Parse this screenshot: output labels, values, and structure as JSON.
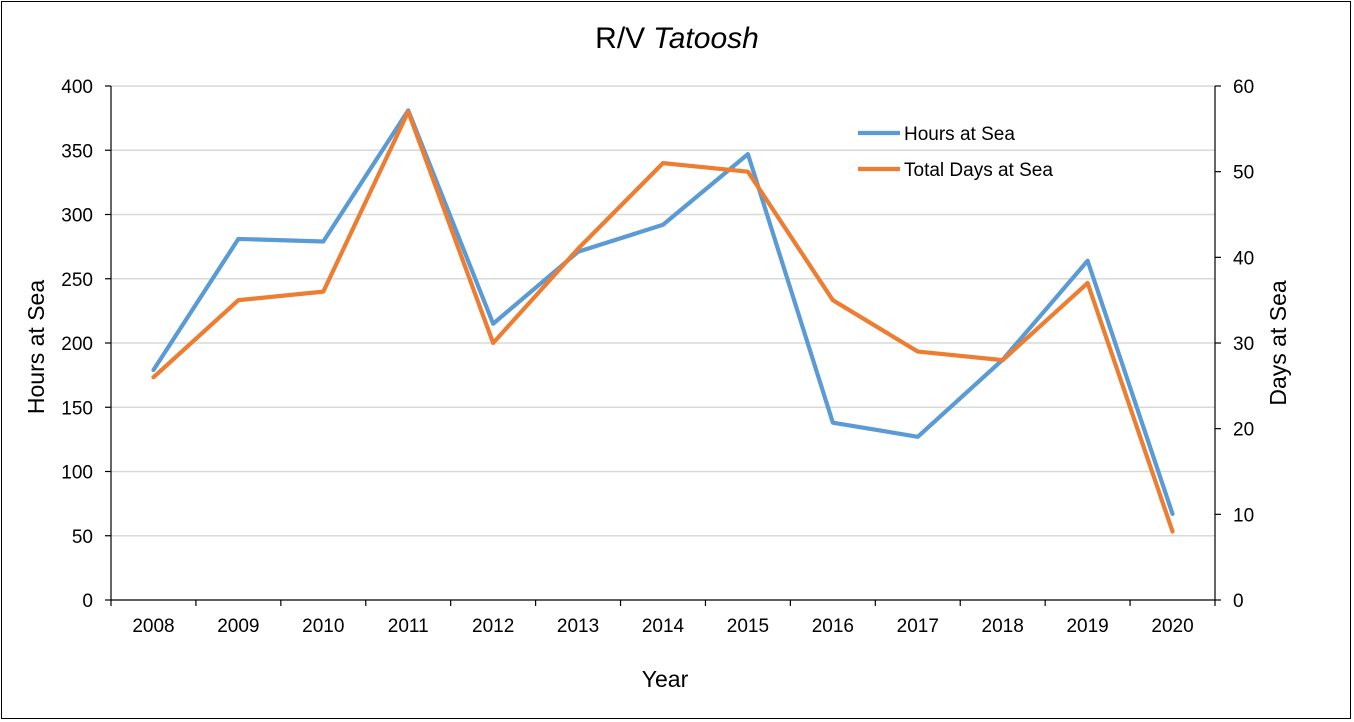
{
  "chart_data": {
    "type": "line",
    "title": "R/V",
    "title_italic": "Tatoosh",
    "xlabel": "Year",
    "ylabel_left": "Hours at Sea",
    "ylabel_right": "Days at Sea",
    "categories": [
      "2008",
      "2009",
      "2010",
      "2011",
      "2012",
      "2013",
      "2014",
      "2015",
      "2016",
      "2017",
      "2018",
      "2019",
      "2020"
    ],
    "ylim_left": [
      0,
      400
    ],
    "yticks_left": [
      0,
      50,
      100,
      150,
      200,
      250,
      300,
      350,
      400
    ],
    "ylim_right": [
      0,
      60
    ],
    "yticks_right": [
      0,
      10,
      20,
      30,
      40,
      50,
      60
    ],
    "grid": "horizontal",
    "legend_position": "top-right",
    "series": [
      {
        "name": "Hours at Sea",
        "axis": "left",
        "color": "#5B9BD5",
        "values": [
          179,
          281,
          279,
          381,
          215,
          271,
          292,
          347,
          138,
          127,
          187,
          264,
          67
        ]
      },
      {
        "name": "Total Days at Sea",
        "axis": "right",
        "color": "#ED7D31",
        "values": [
          26,
          35,
          36,
          57,
          30,
          41,
          51,
          50,
          35,
          29,
          28,
          37,
          8
        ]
      }
    ]
  }
}
